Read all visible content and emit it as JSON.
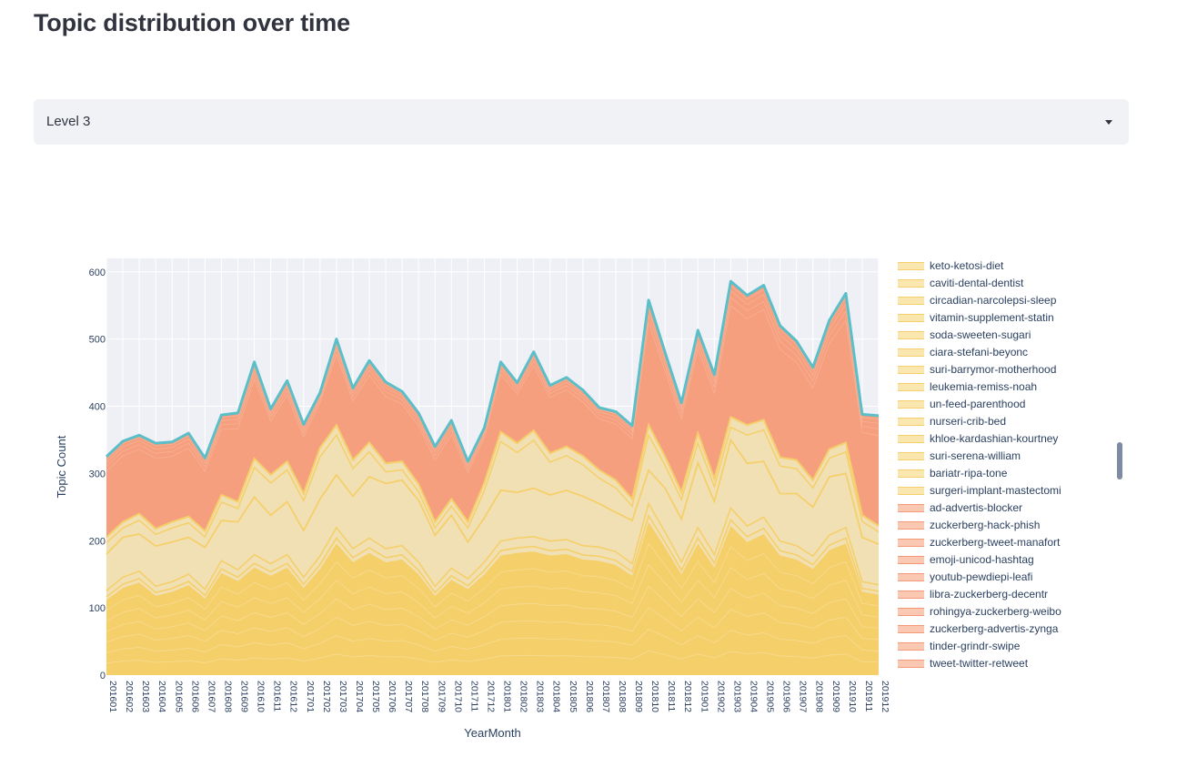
{
  "page": {
    "title": "Topic distribution over time"
  },
  "level_select": {
    "value": "Level 3"
  },
  "legend": {
    "items": [
      {
        "label": "keto-ketosi-diet",
        "color": "#f5cf6a"
      },
      {
        "label": "caviti-dental-dentist",
        "color": "#f5cf6a"
      },
      {
        "label": "circadian-narcolepsi-sleep",
        "color": "#f5cf6a"
      },
      {
        "label": "vitamin-supplement-statin",
        "color": "#f5cf6a"
      },
      {
        "label": "soda-sweeten-sugari",
        "color": "#f5cf6a"
      },
      {
        "label": "ciara-stefani-beyonc",
        "color": "#f5cf6a"
      },
      {
        "label": "suri-barrymor-motherhood",
        "color": "#f5cf6a"
      },
      {
        "label": "leukemia-remiss-noah",
        "color": "#f5cf6a"
      },
      {
        "label": "un-feed-parenthood",
        "color": "#f5cf6a"
      },
      {
        "label": "nurseri-crib-bed",
        "color": "#f5cf6a"
      },
      {
        "label": "khloe-kardashian-kourtney",
        "color": "#f5cf6a"
      },
      {
        "label": "suri-serena-william",
        "color": "#f5cf6a"
      },
      {
        "label": "bariatr-ripa-tone",
        "color": "#f5cf6a"
      },
      {
        "label": "surgeri-implant-mastectomi",
        "color": "#f5cf6a"
      },
      {
        "label": "ad-advertis-blocker",
        "color": "#f59a78"
      },
      {
        "label": "zuckerberg-hack-phish",
        "color": "#f59a78"
      },
      {
        "label": "zuckerberg-tweet-manafort",
        "color": "#f59a78"
      },
      {
        "label": "emoji-unicod-hashtag",
        "color": "#f59a78"
      },
      {
        "label": "youtub-pewdiepi-leafi",
        "color": "#f59a78"
      },
      {
        "label": "libra-zuckerberg-decentr",
        "color": "#f59a78"
      },
      {
        "label": "rohingya-zuckerberg-weibo",
        "color": "#f59a78"
      },
      {
        "label": "zuckerberg-advertis-zynga",
        "color": "#f59a78"
      },
      {
        "label": "tinder-grindr-swipe",
        "color": "#f59a78"
      },
      {
        "label": "tweet-twitter-retweet",
        "color": "#f59a78"
      }
    ]
  },
  "chart_data": {
    "type": "area",
    "xlabel": "YearMonth",
    "ylabel": "Topic Count",
    "ylim": [
      0,
      620
    ],
    "yticks": [
      0,
      100,
      200,
      300,
      400,
      500,
      600
    ],
    "x": [
      "201601",
      "201602",
      "201603",
      "201604",
      "201605",
      "201606",
      "201607",
      "201608",
      "201609",
      "201610",
      "201611",
      "201612",
      "201701",
      "201702",
      "201703",
      "201704",
      "201705",
      "201706",
      "201707",
      "201708",
      "201709",
      "201710",
      "201711",
      "201712",
      "201801",
      "201802",
      "201803",
      "201804",
      "201805",
      "201806",
      "201807",
      "201808",
      "201809",
      "201810",
      "201811",
      "201812",
      "201901",
      "201902",
      "201903",
      "201904",
      "201905",
      "201906",
      "201907",
      "201908",
      "201909",
      "201910",
      "201911",
      "201912"
    ],
    "total": [
      325,
      348,
      357,
      345,
      347,
      360,
      323,
      387,
      390,
      466,
      396,
      438,
      373,
      420,
      500,
      427,
      468,
      436,
      422,
      390,
      340,
      379,
      318,
      368,
      466,
      435,
      481,
      431,
      443,
      424,
      398,
      392,
      371,
      558,
      480,
      405,
      513,
      447,
      586,
      565,
      580,
      520,
      497,
      458,
      528,
      568,
      388,
      386
    ],
    "yellow_top": [
      205,
      228,
      240,
      218,
      228,
      236,
      214,
      268,
      258,
      322,
      298,
      318,
      270,
      338,
      372,
      320,
      346,
      315,
      318,
      284,
      228,
      262,
      228,
      286,
      362,
      345,
      364,
      330,
      340,
      326,
      305,
      290,
      262,
      372,
      325,
      272,
      360,
      292,
      384,
      372,
      380,
      324,
      320,
      290,
      336,
      346,
      238,
      222
    ],
    "band_top": [
      180,
      205,
      210,
      192,
      198,
      205,
      190,
      230,
      228,
      265,
      238,
      258,
      215,
      262,
      298,
      266,
      295,
      285,
      290,
      260,
      208,
      238,
      198,
      234,
      275,
      272,
      278,
      268,
      275,
      266,
      255,
      242,
      230,
      305,
      278,
      232,
      316,
      258,
      350,
      315,
      318,
      270,
      270,
      250,
      295,
      300,
      205,
      195
    ],
    "lower_top": [
      112,
      130,
      138,
      118,
      124,
      134,
      114,
      152,
      140,
      160,
      148,
      160,
      130,
      158,
      196,
      168,
      182,
      168,
      172,
      150,
      118,
      142,
      128,
      150,
      178,
      182,
      184,
      178,
      180,
      172,
      170,
      164,
      148,
      228,
      190,
      150,
      196,
      160,
      222,
      198,
      210,
      178,
      172,
      158,
      186,
      196,
      124,
      120
    ],
    "series_colors": {
      "yellow": "#f5cf6a",
      "yellow_light": "#f1e0b4",
      "orange": "#f59a78",
      "top_line": "#5bbfc9"
    }
  }
}
